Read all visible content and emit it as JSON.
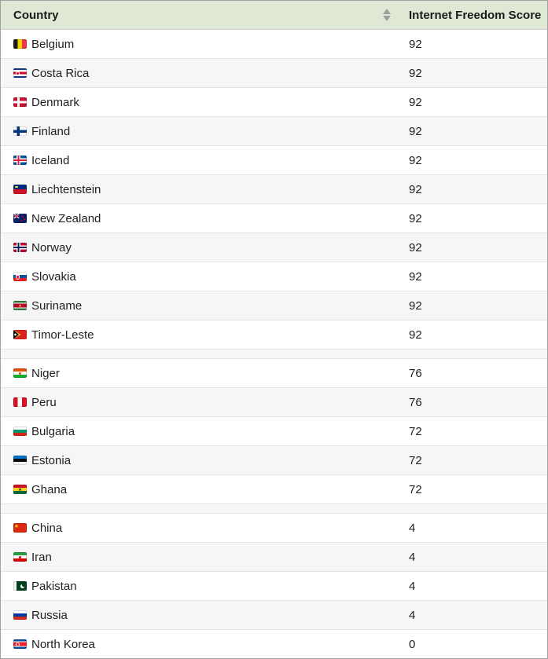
{
  "table": {
    "columns": [
      {
        "label": "Country",
        "sortable": true,
        "sort_icon": "sort-arrows-icon"
      },
      {
        "label": "Internet Freedom Score",
        "sortable": true
      }
    ],
    "rows": [
      {
        "country": "Belgium",
        "flag": "belgium",
        "score": "92"
      },
      {
        "country": "Costa Rica",
        "flag": "costa-rica",
        "score": "92"
      },
      {
        "country": "Denmark",
        "flag": "denmark",
        "score": "92"
      },
      {
        "country": "Finland",
        "flag": "finland",
        "score": "92"
      },
      {
        "country": "Iceland",
        "flag": "iceland",
        "score": "92"
      },
      {
        "country": "Liechtenstein",
        "flag": "liechtenstein",
        "score": "92"
      },
      {
        "country": "New Zealand",
        "flag": "new-zealand",
        "score": "92"
      },
      {
        "country": "Norway",
        "flag": "norway",
        "score": "92"
      },
      {
        "country": "Slovakia",
        "flag": "slovakia",
        "score": "92"
      },
      {
        "country": "Suriname",
        "flag": "suriname",
        "score": "92"
      },
      {
        "country": "Timor-Leste",
        "flag": "timor-leste",
        "score": "92"
      },
      {
        "spacer": true
      },
      {
        "country": "Niger",
        "flag": "niger",
        "score": "76"
      },
      {
        "country": "Peru",
        "flag": "peru",
        "score": "76"
      },
      {
        "country": "Bulgaria",
        "flag": "bulgaria",
        "score": "72"
      },
      {
        "country": "Estonia",
        "flag": "estonia",
        "score": "72"
      },
      {
        "country": "Ghana",
        "flag": "ghana",
        "score": "72"
      },
      {
        "spacer": true
      },
      {
        "country": "China",
        "flag": "china",
        "score": "4"
      },
      {
        "country": "Iran",
        "flag": "iran",
        "score": "4"
      },
      {
        "country": "Pakistan",
        "flag": "pakistan",
        "score": "4"
      },
      {
        "country": "Russia",
        "flag": "russia",
        "score": "4"
      },
      {
        "country": "North Korea",
        "flag": "north-korea",
        "score": "0"
      }
    ]
  },
  "colors": {
    "header_bg": "#dfe8d4",
    "row_stripe": "#f6f6f6",
    "row_border": "#e4e4e4",
    "outer_border": "#a2a2a2",
    "sort_icon": "#9e9e9e",
    "text": "#212121"
  }
}
